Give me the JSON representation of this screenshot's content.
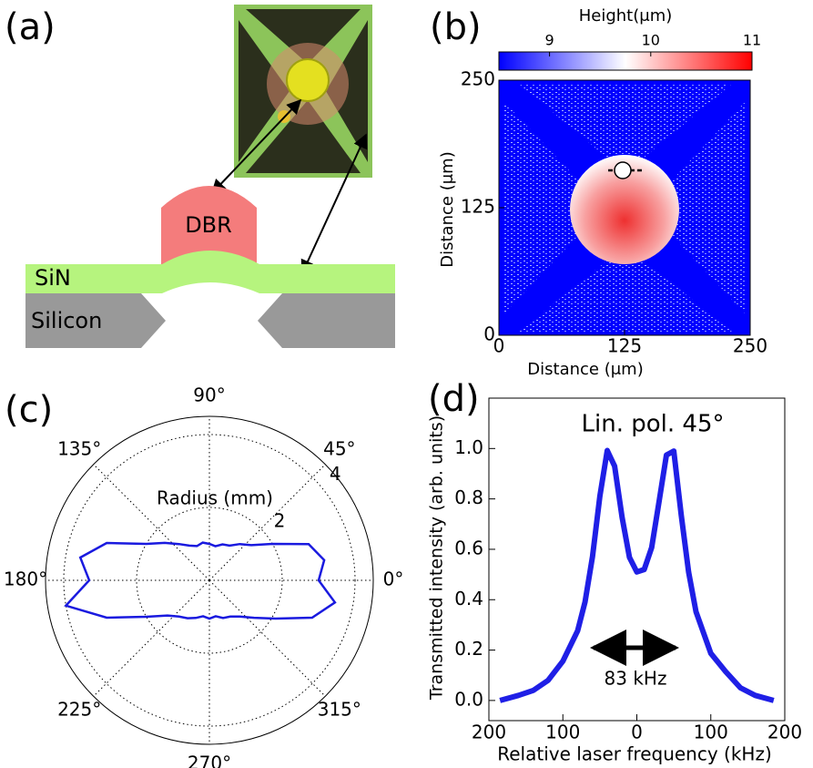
{
  "chart_data": [
    {
      "type": "diagram",
      "panel": "(a)",
      "labels": [
        "DBR",
        "SiN",
        "Silicon"
      ]
    },
    {
      "type": "heatmap",
      "panel": "(b)",
      "colorbar_label": "Height(μm)",
      "colorbar_lim": [
        8.5,
        11
      ],
      "colorbar_ticks": [
        9,
        10,
        11
      ],
      "colors": [
        "#0000ff",
        "#ffffff",
        "#ff0000"
      ],
      "xlabel": "Distance (μm)",
      "ylabel": "Distance (μm)",
      "xlim": [
        0,
        250
      ],
      "ylim": [
        0,
        250
      ],
      "xticks": [
        0,
        125,
        250
      ],
      "yticks": [
        0,
        125,
        250
      ]
    },
    {
      "type": "polar",
      "panel": "(c)",
      "radial_label": "Radius (mm)",
      "rlim": [
        0,
        4.5
      ],
      "rticks": [
        2,
        4
      ],
      "angle_ticks": [
        {
          "value": 0,
          "label": "0°"
        },
        {
          "value": 45,
          "label": "45°"
        },
        {
          "value": 90,
          "label": "90°"
        },
        {
          "value": 135,
          "label": "135°"
        },
        {
          "value": 180,
          "label": "180°"
        },
        {
          "value": 225,
          "label": "225°"
        },
        {
          "value": 270,
          "label": "270°"
        },
        {
          "value": 315,
          "label": "315°"
        }
      ],
      "theta": [
        0,
        10,
        20,
        30,
        40,
        50,
        60,
        70,
        80,
        90,
        100,
        110,
        120,
        130,
        140,
        150,
        160,
        170,
        180,
        190,
        200,
        210,
        220,
        230,
        240,
        250,
        260,
        270,
        280,
        290,
        300,
        310,
        320,
        330,
        340,
        350
      ],
      "r": [
        3.0,
        3.2,
        2.9,
        2.0,
        1.5,
        1.3,
        1.1,
        1.05,
        0.95,
        1.0,
        1.05,
        1.0,
        1.1,
        1.3,
        1.6,
        2.0,
        3.0,
        3.6,
        3.3,
        4.0,
        3.0,
        2.0,
        1.5,
        1.3,
        1.2,
        1.1,
        1.0,
        1.05,
        1.0,
        1.1,
        1.15,
        1.3,
        1.6,
        2.1,
        3.0,
        3.5
      ],
      "color": "#1a1adf"
    },
    {
      "type": "line",
      "panel": "(d)",
      "annotation": "Lin. pol. 45°",
      "span_label": "83 kHz",
      "xlabel": "Relative laser frequency (kHz)",
      "ylabel": "Transmitted intensity (arb. units)",
      "xlim": [
        -200,
        200
      ],
      "xticks": [
        {
          "value": -200,
          "label": "200"
        },
        {
          "value": -100,
          "label": "100"
        },
        0,
        100,
        200
      ],
      "ylim": [
        -0.08,
        1.2
      ],
      "yticks": [
        {
          "value": 0,
          "label": "0.0"
        },
        {
          "value": 0.2,
          "label": "0.2"
        },
        {
          "value": 0.4,
          "label": "0.4"
        },
        {
          "value": 0.6,
          "label": "0.6"
        },
        {
          "value": 0.8,
          "label": "0.8"
        },
        {
          "value": 1.0,
          "label": "1.0"
        }
      ],
      "x": [
        -185,
        -160,
        -140,
        -120,
        -100,
        -80,
        -70,
        -60,
        -50,
        -40,
        -30,
        -20,
        -10,
        0,
        10,
        20,
        30,
        40,
        50,
        60,
        70,
        80,
        100,
        120,
        140,
        160,
        185
      ],
      "values": [
        0.0,
        0.02,
        0.04,
        0.08,
        0.156,
        0.277,
        0.391,
        0.571,
        0.811,
        0.992,
        0.93,
        0.727,
        0.568,
        0.51,
        0.52,
        0.607,
        0.789,
        0.974,
        0.99,
        0.735,
        0.509,
        0.352,
        0.187,
        0.115,
        0.05,
        0.02,
        0.0
      ],
      "color": "#1f1fe6"
    }
  ]
}
